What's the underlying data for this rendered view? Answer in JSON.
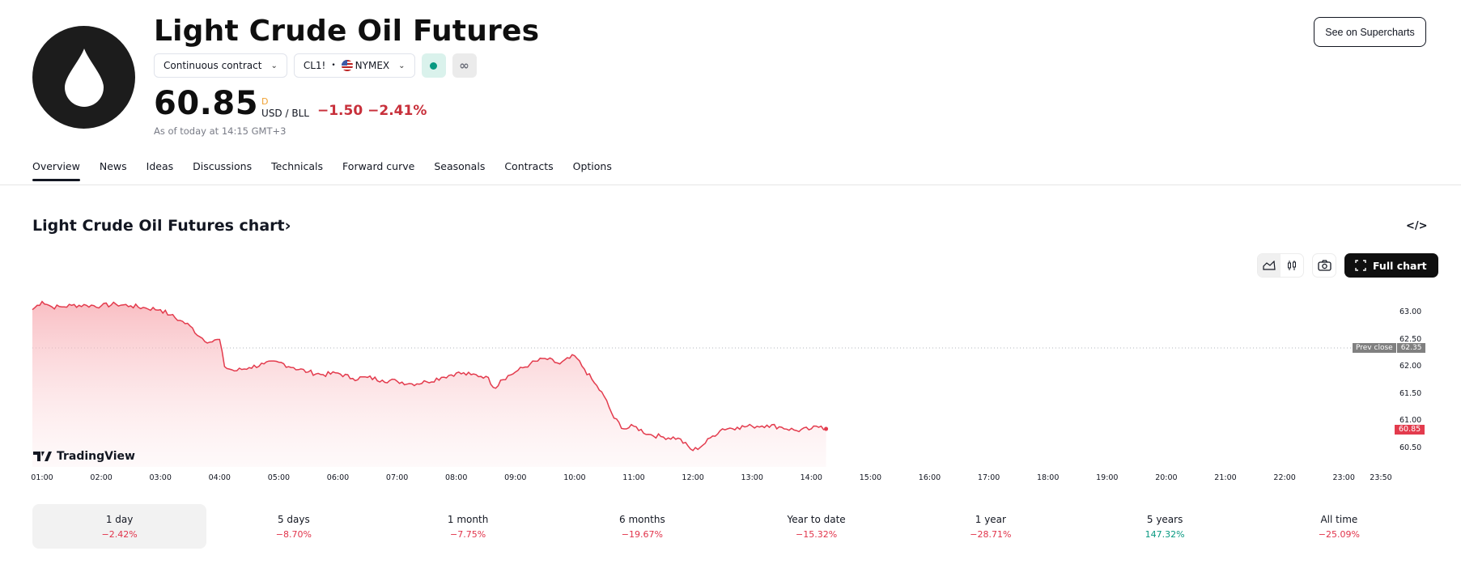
{
  "header": {
    "title": "Light Crude Oil Futures",
    "logo_icon": "oil-drop-icon",
    "contract_selector": "Continuous contract",
    "symbol": "CL1!",
    "separator": "•",
    "exchange": "NYMEX",
    "exchange_flag": "us-flag-icon",
    "market_status_color": "#089981",
    "infinity_icon": "∞",
    "price": "60.85",
    "price_flag": "D",
    "unit": "USD / BLL",
    "change_abs": "−1.50",
    "change_pct": "−2.41%",
    "as_of": "As of today at 14:15 GMT+3",
    "supercharts_button": "See on Supercharts"
  },
  "tabs": [
    {
      "label": "Overview",
      "active": true
    },
    {
      "label": "News"
    },
    {
      "label": "Ideas"
    },
    {
      "label": "Discussions"
    },
    {
      "label": "Technicals"
    },
    {
      "label": "Forward curve"
    },
    {
      "label": "Seasonals"
    },
    {
      "label": "Contracts"
    },
    {
      "label": "Options"
    }
  ],
  "chart_section": {
    "title": "Light Crude Oil Futures chart›",
    "embed_icon": "</>",
    "full_chart_button": "Full chart",
    "brand": "TradingView",
    "prev_close_label": "Prev close",
    "prev_close_value": "62.35",
    "last_value": "60.85"
  },
  "colors": {
    "line": "#e33b4d",
    "down": "#e1334a",
    "up": "#089981",
    "accent_dark": "#0f0f0f"
  },
  "chart_data": {
    "type": "area",
    "title": "Light Crude Oil Futures chart",
    "xlabel": "",
    "ylabel": "USD / BLL",
    "ylim": [
      60.3,
      63.25
    ],
    "yticks": [
      "63.00",
      "62.50",
      "62.00",
      "61.50",
      "61.00",
      "60.50"
    ],
    "xticks": [
      "01:00",
      "02:00",
      "03:00",
      "04:00",
      "05:00",
      "06:00",
      "07:00",
      "08:00",
      "09:00",
      "10:00",
      "11:00",
      "12:00",
      "13:00",
      "14:00",
      "15:00",
      "16:00",
      "17:00",
      "18:00",
      "19:00",
      "20:00",
      "21:00",
      "22:00",
      "23:00",
      "23:50"
    ],
    "grid": false,
    "prev_close": 62.35,
    "last": 60.85,
    "series": [
      {
        "name": "CL1!",
        "x": [
          "00:50",
          "01:00",
          "01:10",
          "01:20",
          "01:30",
          "01:45",
          "02:00",
          "02:15",
          "02:30",
          "02:45",
          "03:00",
          "03:10",
          "03:20",
          "03:30",
          "03:40",
          "03:50",
          "04:00",
          "04:05",
          "04:15",
          "04:30",
          "04:45",
          "05:00",
          "05:15",
          "05:30",
          "05:45",
          "06:00",
          "06:15",
          "06:30",
          "06:45",
          "07:00",
          "07:15",
          "07:30",
          "07:45",
          "08:00",
          "08:15",
          "08:30",
          "08:40",
          "08:45",
          "09:00",
          "09:15",
          "09:30",
          "09:45",
          "10:00",
          "10:10",
          "10:20",
          "10:30",
          "10:40",
          "10:50",
          "11:00",
          "11:15",
          "11:30",
          "11:45",
          "12:00",
          "12:10",
          "12:20",
          "12:30",
          "12:45",
          "13:00",
          "13:15",
          "13:30",
          "13:45",
          "14:00",
          "14:10",
          "14:15"
        ],
        "values": [
          63.05,
          63.2,
          63.1,
          63.1,
          63.13,
          63.13,
          63.12,
          63.15,
          63.12,
          63.08,
          63.05,
          62.95,
          62.85,
          62.75,
          62.55,
          62.45,
          62.5,
          62.0,
          61.92,
          61.98,
          62.05,
          62.08,
          61.98,
          61.9,
          61.85,
          61.88,
          61.78,
          61.8,
          61.75,
          61.73,
          61.68,
          61.72,
          61.8,
          61.88,
          61.85,
          61.82,
          61.6,
          61.75,
          61.9,
          62.05,
          62.15,
          62.05,
          62.2,
          61.95,
          61.7,
          61.45,
          61.05,
          60.85,
          60.9,
          60.75,
          60.7,
          60.68,
          60.45,
          60.55,
          60.72,
          60.85,
          60.88,
          60.9,
          60.92,
          60.88,
          60.82,
          60.85,
          60.9,
          60.85
        ]
      }
    ]
  },
  "periods": [
    {
      "label": "1 day",
      "value": "−2.42%",
      "dir": "down",
      "active": true
    },
    {
      "label": "5 days",
      "value": "−8.70%",
      "dir": "down"
    },
    {
      "label": "1 month",
      "value": "−7.75%",
      "dir": "down"
    },
    {
      "label": "6 months",
      "value": "−19.67%",
      "dir": "down"
    },
    {
      "label": "Year to date",
      "value": "−15.32%",
      "dir": "down"
    },
    {
      "label": "1 year",
      "value": "−28.71%",
      "dir": "down"
    },
    {
      "label": "5 years",
      "value": "147.32%",
      "dir": "up"
    },
    {
      "label": "All time",
      "value": "−25.09%",
      "dir": "down"
    }
  ]
}
